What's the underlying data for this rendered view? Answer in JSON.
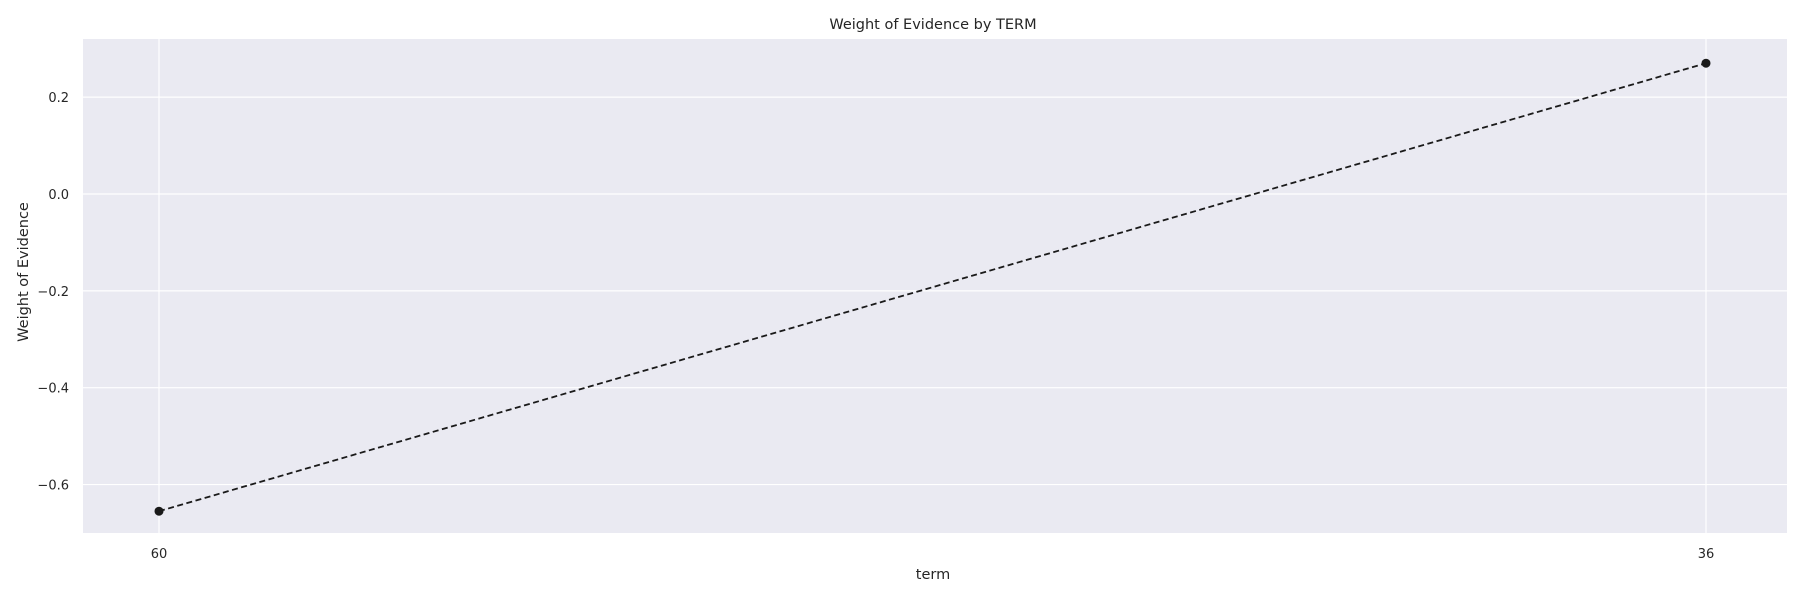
{
  "chart_data": {
    "type": "line",
    "title": "Weight of Evidence by TERM",
    "xlabel": "term",
    "ylabel": "Weight of Evidence",
    "categories": [
      "60",
      "36"
    ],
    "series": [
      {
        "values": [
          -0.655,
          0.27
        ]
      }
    ],
    "yticks": [
      -0.6,
      -0.4,
      -0.2,
      0.0,
      0.2
    ],
    "ytick_labels": [
      "−0.6",
      "−0.4",
      "−0.2",
      "0.0",
      "0.2"
    ],
    "ylim": [
      -0.7,
      0.32
    ],
    "grid": true,
    "line_style": "dashed",
    "marker": "circle",
    "colors": {
      "background": "#eaeaf2",
      "grid": "#ffffff",
      "line": "#1a1a1a",
      "text": "#262626"
    }
  }
}
